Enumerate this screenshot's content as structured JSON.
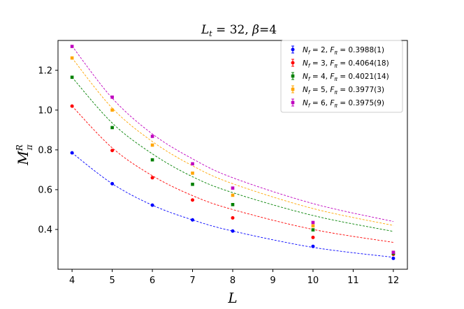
{
  "chart_data": {
    "type": "scatter",
    "title": "L_t = 32, β=4",
    "title_parts": {
      "lt_var": "L",
      "lt_sub": "t",
      "lt_eq": " = 32, ",
      "beta": "β",
      "beta_eq": "=4"
    },
    "xlabel": "L",
    "ylabel": "M_π^R",
    "ylabel_parts": {
      "base": "M",
      "sup": "R",
      "sub": "π"
    },
    "xlim": [
      3.65,
      12.35
    ],
    "ylim": [
      0.2,
      1.35
    ],
    "xticks": [
      4,
      5,
      6,
      7,
      8,
      9,
      10,
      11,
      12
    ],
    "xtick_labels": [
      "4",
      "5",
      "6",
      "7",
      "8",
      "9",
      "10",
      "11",
      "12"
    ],
    "yticks": [
      0.4,
      0.6,
      0.8,
      1.0,
      1.2
    ],
    "ytick_labels": [
      "0.4",
      "0.6",
      "0.8",
      "1.0",
      "1.2"
    ],
    "grid": false,
    "legend_position": "top-right",
    "series": [
      {
        "name": "N_f = 2, F_π = 0.3988(1)",
        "nf": "2",
        "fpi": "0.3988(1)",
        "color": "#0000ff",
        "marker": "circle",
        "x": [
          4,
          5,
          6,
          7,
          8,
          10,
          12
        ],
        "y": [
          0.785,
          0.63,
          0.522,
          0.448,
          0.392,
          0.315,
          0.255
        ]
      },
      {
        "name": "N_f = 3, F_π = 0.4064(18)",
        "nf": "3",
        "fpi": "0.4064(18)",
        "color": "#ff0000",
        "marker": "circle",
        "x": [
          4,
          5,
          6,
          7,
          8,
          10,
          12
        ],
        "y": [
          1.02,
          0.797,
          0.66,
          0.548,
          0.458,
          0.36,
          0.275
        ]
      },
      {
        "name": "N_f = 4, F_π = 0.4021(14)",
        "nf": "4",
        "fpi": "0.4021(14)",
        "color": "#008000",
        "marker": "square",
        "x": [
          4,
          5,
          6,
          7,
          8,
          10,
          12
        ],
        "y": [
          1.165,
          0.912,
          0.75,
          0.627,
          0.525,
          0.398,
          0.28
        ]
      },
      {
        "name": "N_f = 5, F_π = 0.3977(3)",
        "nf": "5",
        "fpi": "0.3977(3)",
        "color": "#ffa500",
        "marker": "square",
        "x": [
          4,
          5,
          6,
          7,
          8,
          10,
          12
        ],
        "y": [
          1.262,
          1.0,
          0.824,
          0.683,
          0.572,
          0.418,
          0.285
        ]
      },
      {
        "name": "N_f = 6, F_π = 0.3975(9)",
        "nf": "6",
        "fpi": "0.3975(9)",
        "color": "#bf00bf",
        "marker": "square",
        "x": [
          4,
          5,
          6,
          7,
          8,
          10,
          12
        ],
        "y": [
          1.32,
          1.065,
          0.868,
          0.73,
          0.608,
          0.435,
          0.285
        ]
      }
    ],
    "fit_curves": [
      {
        "color": "#0000ff",
        "x": [
          4,
          5,
          6,
          7,
          8,
          10,
          12
        ],
        "y": [
          0.785,
          0.63,
          0.522,
          0.448,
          0.392,
          0.31,
          0.26
        ]
      },
      {
        "color": "#ff0000",
        "x": [
          4,
          5,
          6,
          7,
          8,
          10,
          12
        ],
        "y": [
          1.02,
          0.81,
          0.67,
          0.57,
          0.5,
          0.4,
          0.335
        ]
      },
      {
        "color": "#008000",
        "x": [
          4,
          5,
          6,
          7,
          8,
          10,
          12
        ],
        "y": [
          1.165,
          0.935,
          0.78,
          0.665,
          0.585,
          0.47,
          0.39
        ]
      },
      {
        "color": "#ffa500",
        "x": [
          4,
          5,
          6,
          7,
          8,
          10,
          12
        ],
        "y": [
          1.262,
          1.01,
          0.842,
          0.72,
          0.63,
          0.505,
          0.42
        ]
      },
      {
        "color": "#bf00bf",
        "x": [
          4,
          5,
          6,
          7,
          8,
          10,
          12
        ],
        "y": [
          1.322,
          1.06,
          0.88,
          0.755,
          0.66,
          0.53,
          0.44
        ]
      }
    ]
  }
}
